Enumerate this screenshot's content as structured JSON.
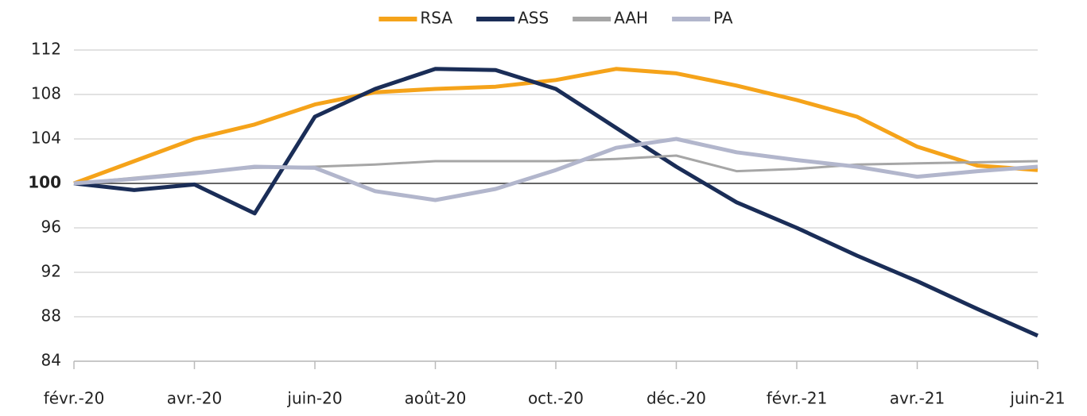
{
  "chart_data": {
    "type": "line",
    "categories": [
      "févr.-20",
      null,
      "avr.-20",
      null,
      "juin-20",
      null,
      "août-20",
      null,
      "oct.-20",
      null,
      "déc.-20",
      null,
      "févr.-21",
      null,
      "avr.-21",
      null,
      "juin-21"
    ],
    "series": [
      {
        "name": "RSA",
        "color": "#f5a31a",
        "values": [
          100,
          102,
          104,
          105.3,
          107.1,
          108.2,
          108.5,
          108.7,
          109.3,
          110.3,
          109.9,
          108.8,
          107.5,
          106,
          103.3,
          101.6,
          101.2
        ]
      },
      {
        "name": "ASS",
        "color": "#1a2d57",
        "values": [
          100,
          99.4,
          99.9,
          97.3,
          106,
          108.5,
          110.3,
          110.2,
          108.5,
          105,
          101.5,
          98.3,
          96,
          93.5,
          91.2,
          88.7,
          86.3
        ]
      },
      {
        "name": "AAH",
        "color": "#a6a6a6",
        "values": [
          100,
          100.5,
          101,
          101.4,
          101.5,
          101.7,
          102,
          102,
          102,
          102.2,
          102.5,
          101.1,
          101.3,
          101.7,
          101.8,
          101.9,
          102
        ]
      },
      {
        "name": "PA",
        "color": "#b2b6cc",
        "values": [
          100,
          100.4,
          100.9,
          101.5,
          101.4,
          99.3,
          98.5,
          99.5,
          101.2,
          103.2,
          104,
          102.8,
          102.1,
          101.5,
          100.6,
          101.1,
          101.5
        ]
      }
    ],
    "ylim": [
      84,
      112
    ],
    "yticks": [
      84,
      88,
      92,
      96,
      100,
      104,
      108,
      112
    ],
    "baseline": 100,
    "grid": true,
    "legend": "top"
  }
}
